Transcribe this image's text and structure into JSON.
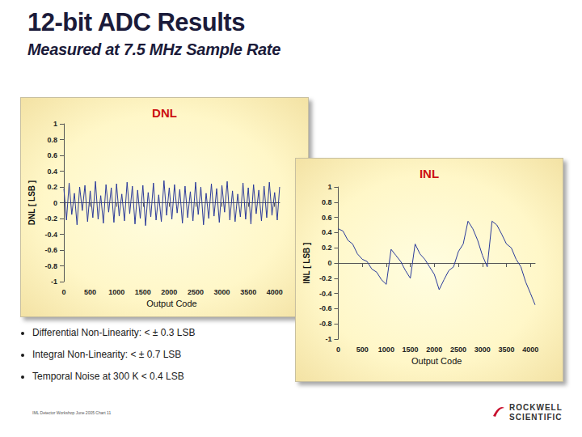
{
  "title": "12-bit ADC Results",
  "subtitle": "Measured at 7.5 MHz Sample Rate",
  "bullets": [
    "Differential Non-Linearity: < ± 0.3 LSB",
    "Integral Non-Linearity: < ± 0.7 LSB",
    "Temporal Noise at 300 K < 0.4 LSB"
  ],
  "footer": "IML Detector Workshop June 2005  Chart 11",
  "logo": [
    "ROCKWELL",
    "SCIENTIFIC"
  ],
  "chart_data": [
    {
      "type": "line",
      "title": "DNL",
      "x_label": "Output Code",
      "y_label": "DNL [ LSB ]",
      "color": "#2b3a9a",
      "marker": "none",
      "line_style": "solid",
      "grid": false,
      "xlim": [
        0,
        4096
      ],
      "xticks": [
        0,
        500,
        1000,
        1500,
        2000,
        2500,
        3000,
        3500,
        4000
      ],
      "ylim": [
        -1,
        1
      ],
      "yticks": [
        -1,
        -0.8,
        -0.6,
        -0.4,
        -0.2,
        0,
        0.2,
        0.4,
        0.6,
        0.8,
        1
      ],
      "x": [
        0,
        50,
        100,
        150,
        200,
        250,
        300,
        350,
        400,
        450,
        500,
        550,
        600,
        650,
        700,
        750,
        800,
        850,
        900,
        950,
        1000,
        1050,
        1100,
        1150,
        1200,
        1250,
        1300,
        1350,
        1400,
        1450,
        1500,
        1550,
        1600,
        1650,
        1700,
        1750,
        1800,
        1850,
        1900,
        1950,
        2000,
        2050,
        2100,
        2150,
        2200,
        2250,
        2300,
        2350,
        2400,
        2450,
        2500,
        2550,
        2600,
        2650,
        2700,
        2750,
        2800,
        2850,
        2900,
        2950,
        3000,
        3050,
        3100,
        3150,
        3200,
        3250,
        3300,
        3350,
        3400,
        3450,
        3500,
        3550,
        3600,
        3650,
        3700,
        3750,
        3800,
        3850,
        3900,
        3950,
        4000,
        4050,
        4095
      ],
      "values": [
        0.18,
        -0.22,
        0.25,
        -0.15,
        0.12,
        -0.28,
        0.2,
        -0.1,
        0.22,
        -0.24,
        0.15,
        -0.19,
        0.27,
        -0.21,
        0.09,
        -0.26,
        0.23,
        -0.12,
        0.19,
        -0.25,
        0.24,
        -0.17,
        0.11,
        -0.23,
        0.26,
        -0.14,
        0.21,
        -0.27,
        0.16,
        -0.2,
        0.22,
        -0.29,
        0.13,
        -0.18,
        0.25,
        -0.22,
        0.1,
        -0.24,
        0.28,
        -0.16,
        0.19,
        -0.21,
        0.23,
        -0.13,
        0.17,
        -0.26,
        0.21,
        -0.19,
        0.14,
        -0.23,
        0.26,
        -0.15,
        0.2,
        -0.28,
        0.12,
        -0.2,
        0.24,
        -0.17,
        0.18,
        -0.25,
        0.22,
        -0.12,
        0.27,
        -0.22,
        0.15,
        -0.24,
        0.11,
        -0.18,
        0.25,
        -0.21,
        0.19,
        -0.27,
        0.23,
        -0.14,
        0.16,
        -0.23,
        0.21,
        -0.19,
        0.26,
        -0.16,
        0.13,
        -0.22,
        0.2
      ]
    },
    {
      "type": "line",
      "title": "INL",
      "x_label": "Output Code",
      "y_label": "INL [ LSB ]",
      "color": "#2b3a9a",
      "marker": "none",
      "line_style": "solid",
      "grid": false,
      "xlim": [
        0,
        4096
      ],
      "xticks": [
        0,
        500,
        1000,
        1500,
        2000,
        2500,
        3000,
        3500,
        4000
      ],
      "ylim": [
        -1,
        1
      ],
      "yticks": [
        -1,
        -0.8,
        -0.6,
        -0.4,
        -0.2,
        0,
        0.2,
        0.4,
        0.6,
        0.8,
        1
      ],
      "x": [
        0,
        100,
        200,
        300,
        400,
        500,
        600,
        700,
        800,
        900,
        1000,
        1100,
        1200,
        1300,
        1400,
        1500,
        1600,
        1700,
        1800,
        1900,
        2000,
        2100,
        2200,
        2300,
        2400,
        2500,
        2600,
        2700,
        2800,
        2900,
        3000,
        3100,
        3200,
        3300,
        3400,
        3500,
        3600,
        3700,
        3800,
        3900,
        4000,
        4095
      ],
      "values": [
        0.45,
        0.42,
        0.3,
        0.25,
        0.12,
        0.05,
        0.02,
        -0.08,
        -0.12,
        -0.22,
        -0.28,
        0.18,
        0.1,
        0.02,
        -0.1,
        -0.2,
        0.25,
        0.12,
        0.05,
        -0.05,
        -0.15,
        -0.35,
        -0.22,
        -0.1,
        -0.05,
        0.15,
        0.25,
        0.55,
        0.45,
        0.3,
        0.1,
        -0.05,
        0.55,
        0.5,
        0.38,
        0.25,
        0.2,
        0.05,
        -0.05,
        -0.25,
        -0.4,
        -0.55
      ]
    }
  ]
}
